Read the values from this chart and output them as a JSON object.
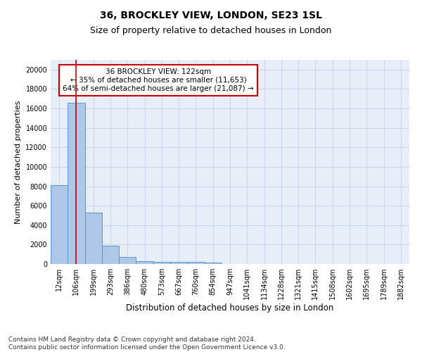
{
  "title1": "36, BROCKLEY VIEW, LONDON, SE23 1SL",
  "title2": "Size of property relative to detached houses in London",
  "xlabel": "Distribution of detached houses by size in London",
  "ylabel": "Number of detached properties",
  "categories": [
    "12sqm",
    "106sqm",
    "199sqm",
    "293sqm",
    "386sqm",
    "480sqm",
    "573sqm",
    "667sqm",
    "760sqm",
    "854sqm",
    "947sqm",
    "1041sqm",
    "1134sqm",
    "1228sqm",
    "1321sqm",
    "1415sqm",
    "1508sqm",
    "1602sqm",
    "1695sqm",
    "1789sqm",
    "1882sqm"
  ],
  "bar_heights": [
    8100,
    16600,
    5300,
    1850,
    700,
    320,
    240,
    200,
    190,
    160,
    0,
    0,
    0,
    0,
    0,
    0,
    0,
    0,
    0,
    0,
    0
  ],
  "bar_color": "#aec6e8",
  "bar_edge_color": "#5599cc",
  "property_line_x": 1,
  "property_line_color": "#cc0000",
  "annotation_text": "36 BROCKLEY VIEW: 122sqm\n← 35% of detached houses are smaller (11,653)\n64% of semi-detached houses are larger (21,087) →",
  "annotation_box_color": "#ffffff",
  "annotation_box_edge_color": "#cc0000",
  "ylim": [
    0,
    21000
  ],
  "yticks": [
    0,
    2000,
    4000,
    6000,
    8000,
    10000,
    12000,
    14000,
    16000,
    18000,
    20000
  ],
  "grid_color": "#c8d4e8",
  "bg_color": "#e8eef8",
  "footer_text": "Contains HM Land Registry data © Crown copyright and database right 2024.\nContains public sector information licensed under the Open Government Licence v3.0.",
  "title1_fontsize": 10,
  "title2_fontsize": 9,
  "xlabel_fontsize": 8.5,
  "ylabel_fontsize": 8,
  "tick_fontsize": 7,
  "annotation_fontsize": 7.5,
  "footer_fontsize": 6.5
}
